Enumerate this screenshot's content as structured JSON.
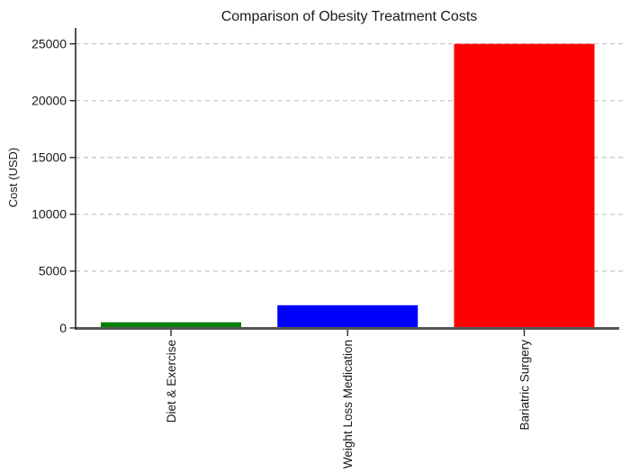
{
  "chart_data": {
    "type": "bar",
    "title": "Comparison of Obesity Treatment Costs",
    "xlabel": "",
    "ylabel": "Cost (USD)",
    "categories": [
      "Diet & Exercise",
      "Weight Loss Medication",
      "Bariatric Surgery"
    ],
    "values": [
      500,
      2000,
      25000
    ],
    "bar_colors": [
      "#008000",
      "#0000ff",
      "#ff0000"
    ],
    "yticks": [
      0,
      5000,
      10000,
      15000,
      20000,
      25000
    ],
    "ylim": [
      0,
      26400
    ],
    "grid": "horizontal-dashed",
    "legend_position": "none",
    "colors": {
      "background": "#ffffff",
      "gridline": "#c8c8c8",
      "x_axis_line": "#555555",
      "y_axis_line": "#262626",
      "text": "#1a1a1a"
    }
  }
}
